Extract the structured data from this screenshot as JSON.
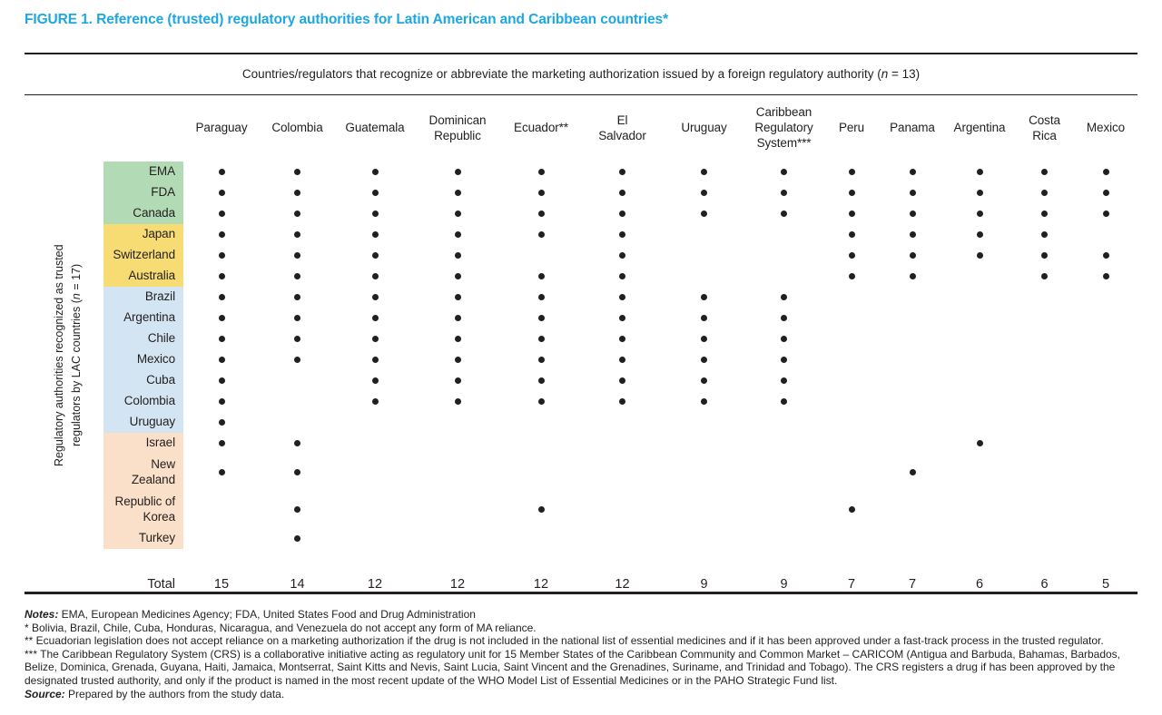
{
  "title": "FIGURE 1. Reference (trusted) regulatory authorities for Latin American and Caribbean countries*",
  "colors": {
    "accent": "#1ea7e1",
    "text": "#231f20",
    "dot": "#231f20",
    "group_green": "#b2dab4",
    "group_yellow": "#f7dc73",
    "group_blue": "#d3e4f2",
    "group_peach": "#fadfc9"
  },
  "chart_data": {
    "type": "table",
    "span_header": "Countries/regulators that recognize or abbreviate the marketing authorization issued by a foreign regulatory authority (n = 13)",
    "axis_label_lines": [
      "Regulatory authorities recognized as trusted",
      "regulators by LAC countries (n = 17)"
    ],
    "columns": [
      {
        "label": "Paraguay",
        "lines": [
          "Paraguay"
        ]
      },
      {
        "label": "Colombia",
        "lines": [
          "Colombia"
        ]
      },
      {
        "label": "Guatemala",
        "lines": [
          "Guatemala"
        ]
      },
      {
        "label": "Dominican Republic",
        "lines": [
          "Dominican",
          "Republic"
        ]
      },
      {
        "label": "Ecuador**",
        "lines": [
          "Ecuador**"
        ]
      },
      {
        "label": "El Salvador",
        "lines": [
          "El",
          "Salvador"
        ]
      },
      {
        "label": "Uruguay",
        "lines": [
          "Uruguay"
        ]
      },
      {
        "label": "Caribbean Regulatory System***",
        "lines": [
          "Caribbean",
          "Regulatory",
          "System***"
        ]
      },
      {
        "label": "Peru",
        "lines": [
          "Peru"
        ]
      },
      {
        "label": "Panama",
        "lines": [
          "Panama"
        ]
      },
      {
        "label": "Argentina",
        "lines": [
          "Argentina"
        ]
      },
      {
        "label": "Costa Rica",
        "lines": [
          "Costa",
          "Rica"
        ]
      },
      {
        "label": "Mexico",
        "lines": [
          "Mexico"
        ]
      }
    ],
    "row_groups": [
      {
        "color_key": "group_green",
        "rows": [
          {
            "label": "EMA",
            "lines": [
              "EMA"
            ],
            "dots": [
              1,
              1,
              1,
              1,
              1,
              1,
              1,
              1,
              1,
              1,
              1,
              1,
              1
            ]
          },
          {
            "label": "FDA",
            "lines": [
              "FDA"
            ],
            "dots": [
              1,
              1,
              1,
              1,
              1,
              1,
              1,
              1,
              1,
              1,
              1,
              1,
              1
            ]
          },
          {
            "label": "Canada",
            "lines": [
              "Canada"
            ],
            "dots": [
              1,
              1,
              1,
              1,
              1,
              1,
              1,
              1,
              1,
              1,
              1,
              1,
              1
            ]
          }
        ]
      },
      {
        "color_key": "group_yellow",
        "rows": [
          {
            "label": "Japan",
            "lines": [
              "Japan"
            ],
            "dots": [
              1,
              1,
              1,
              1,
              1,
              1,
              0,
              0,
              1,
              1,
              1,
              1,
              0
            ]
          },
          {
            "label": "Switzerland",
            "lines": [
              "Switzerland"
            ],
            "dots": [
              1,
              1,
              1,
              1,
              0,
              1,
              0,
              0,
              1,
              1,
              1,
              1,
              1
            ]
          },
          {
            "label": "Australia",
            "lines": [
              "Australia"
            ],
            "dots": [
              1,
              1,
              1,
              1,
              1,
              1,
              0,
              0,
              1,
              1,
              0,
              1,
              1
            ]
          }
        ]
      },
      {
        "color_key": "group_blue",
        "rows": [
          {
            "label": "Brazil",
            "lines": [
              "Brazil"
            ],
            "dots": [
              1,
              1,
              1,
              1,
              1,
              1,
              1,
              1,
              0,
              0,
              0,
              0,
              0
            ]
          },
          {
            "label": "Argentina",
            "lines": [
              "Argentina"
            ],
            "dots": [
              1,
              1,
              1,
              1,
              1,
              1,
              1,
              1,
              0,
              0,
              0,
              0,
              0
            ]
          },
          {
            "label": "Chile",
            "lines": [
              "Chile"
            ],
            "dots": [
              1,
              1,
              1,
              1,
              1,
              1,
              1,
              1,
              0,
              0,
              0,
              0,
              0
            ]
          },
          {
            "label": "Mexico",
            "lines": [
              "Mexico"
            ],
            "dots": [
              1,
              1,
              1,
              1,
              1,
              1,
              1,
              1,
              0,
              0,
              0,
              0,
              0
            ]
          },
          {
            "label": "Cuba",
            "lines": [
              "Cuba"
            ],
            "dots": [
              1,
              0,
              1,
              1,
              1,
              1,
              1,
              1,
              0,
              0,
              0,
              0,
              0
            ]
          },
          {
            "label": "Colombia",
            "lines": [
              "Colombia"
            ],
            "dots": [
              1,
              0,
              1,
              1,
              1,
              1,
              1,
              1,
              0,
              0,
              0,
              0,
              0
            ]
          },
          {
            "label": "Uruguay",
            "lines": [
              "Uruguay"
            ],
            "dots": [
              1,
              0,
              0,
              0,
              0,
              0,
              0,
              0,
              0,
              0,
              0,
              0,
              0
            ]
          }
        ]
      },
      {
        "color_key": "group_peach",
        "rows": [
          {
            "label": "Israel",
            "lines": [
              "Israel"
            ],
            "dots": [
              1,
              1,
              0,
              0,
              0,
              0,
              0,
              0,
              0,
              0,
              1,
              0,
              0
            ]
          },
          {
            "label": "New Zealand",
            "lines": [
              "New",
              "Zealand"
            ],
            "dots": [
              1,
              1,
              0,
              0,
              0,
              0,
              0,
              0,
              0,
              1,
              0,
              0,
              0
            ]
          },
          {
            "label": "Republic of Korea",
            "lines": [
              "Republic of",
              "Korea"
            ],
            "dots": [
              0,
              1,
              0,
              0,
              1,
              0,
              0,
              0,
              1,
              0,
              0,
              0,
              0
            ]
          },
          {
            "label": "Turkey",
            "lines": [
              "Turkey"
            ],
            "dots": [
              0,
              1,
              0,
              0,
              0,
              0,
              0,
              0,
              0,
              0,
              0,
              0,
              0
            ]
          }
        ]
      }
    ],
    "total_label": "Total",
    "column_totals": [
      15,
      14,
      12,
      12,
      12,
      12,
      9,
      9,
      7,
      7,
      6,
      6,
      5
    ]
  },
  "notes": [
    {
      "prefix": "Notes:",
      "text": " EMA, European Medicines Agency; FDA, United States Food and Drug Administration"
    },
    {
      "prefix": "",
      "text": "* Bolivia, Brazil, Chile, Cuba, Honduras, Nicaragua, and Venezuela do not accept any form of MA reliance."
    },
    {
      "prefix": "",
      "text": "** Ecuadorian legislation does not accept reliance on a marketing authorization if the drug is not included in the national list of essential medicines and if it has been approved under a fast-track process in the trusted regulator."
    },
    {
      "prefix": "",
      "text": "*** The Caribbean Regulatory System (CRS) is a collaborative initiative acting as regulatory unit for 15 Member States of the Caribbean Community and Common Market – CARICOM (Antigua and Barbuda, Bahamas, Barbados, Belize, Dominica, Grenada, Guyana, Haiti, Jamaica, Montserrat, Saint Kitts and Nevis, Saint Lucia, Saint Vincent and the Grenadines, Suriname, and Trinidad and Tobago). The CRS registers a drug if has been approved by the designated trusted authority, and only if the product is named in the most recent update of the WHO Model List of Essential Medicines or in the PAHO Strategic Fund list."
    },
    {
      "prefix": "Source:",
      "text": " Prepared by the authors from the study data."
    }
  ]
}
